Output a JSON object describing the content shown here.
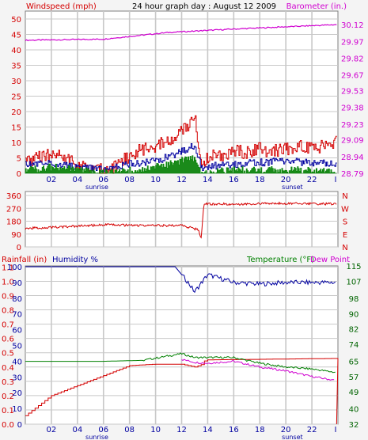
{
  "colors": {
    "red": "#d40000",
    "magenta": "#d000d0",
    "blue": "#0000a0",
    "green": "#008000",
    "darkgreen": "#006400",
    "grid": "#c8c8c8",
    "frame": "#808080"
  },
  "header": {
    "left": "Windspeed (mph)",
    "center": "24 hour graph day : August 12 2009",
    "right": "Barometer (in.)"
  },
  "x_ticks": [
    "02",
    "04",
    "06",
    "08",
    "10",
    "12",
    "14",
    "16",
    "18",
    "20",
    "22"
  ],
  "x_end_label": "I",
  "sunrise_label": "sunrise",
  "sunset_label": "sunset",
  "chart_data": [
    {
      "type": "bar",
      "title": "24 hour graph day : August 12 2009",
      "panel": "wind",
      "x_range": [
        0,
        24
      ],
      "ylim": [
        0,
        50
      ],
      "y_ticks": [
        "0",
        "5",
        "10",
        "15",
        "20",
        "25",
        "30",
        "35",
        "40",
        "45",
        "50"
      ],
      "ylabel": "Windspeed (mph)",
      "y2label": "Barometer (in.)",
      "y2lim": [
        28.79,
        30.17
      ],
      "y2_ticks": [
        "28.79",
        "28.94",
        "29.09",
        "29.23",
        "29.38",
        "29.53",
        "29.67",
        "29.82",
        "29.97",
        "30.12"
      ],
      "series": [
        {
          "name": "Barometer (in.)",
          "axis": "right",
          "hours": [
            0,
            6,
            11,
            16,
            20,
            24
          ],
          "values": [
            29.98,
            29.99,
            30.05,
            30.08,
            30.1,
            30.12
          ]
        },
        {
          "name": "Windspeed (mph)",
          "style": "gust",
          "hours": [
            0,
            1,
            2,
            3,
            4,
            5,
            6,
            7,
            8,
            9,
            10,
            11,
            11.5,
            12,
            12.5,
            13,
            13.5,
            14,
            15,
            16,
            17,
            18,
            19,
            20,
            21,
            22,
            23,
            23.8
          ],
          "values": [
            4,
            5,
            6,
            5,
            3,
            1,
            1,
            2,
            6,
            8,
            9,
            10,
            11,
            14,
            16,
            18,
            3,
            5,
            6,
            7,
            7,
            8,
            7,
            8,
            9,
            8,
            9,
            10
          ]
        },
        {
          "name": "Windspeed (mph)",
          "style": "average",
          "hours": [
            0,
            2,
            4,
            6,
            8,
            10,
            12,
            13,
            13.5,
            16,
            20,
            23.8
          ],
          "values": [
            3,
            3,
            2,
            1,
            3,
            4,
            7,
            9,
            2,
            3,
            4,
            3
          ]
        },
        {
          "name": "Windspeed (mph)",
          "style": "sustained",
          "hours": [
            0,
            2,
            4,
            6,
            8,
            10,
            12,
            13,
            13.5,
            16,
            20,
            23.8
          ],
          "values": [
            1,
            2,
            1,
            0,
            1,
            2,
            4,
            5,
            0,
            1,
            1,
            1
          ]
        }
      ]
    },
    {
      "type": "line",
      "panel": "direction",
      "x_range": [
        0,
        24
      ],
      "ylim": [
        0,
        360
      ],
      "y_ticks": [
        "360",
        "270",
        "180",
        "90",
        "0"
      ],
      "direction_labels": [
        "N",
        "W",
        "S",
        "E",
        "N"
      ],
      "series": [
        {
          "name": "Wind direction",
          "hours": [
            0,
            3,
            6,
            9,
            12,
            13.3,
            13.5,
            13.7,
            16,
            20,
            23.8
          ],
          "values": [
            130,
            140,
            155,
            150,
            150,
            120,
            60,
            300,
            300,
            305,
            300
          ]
        }
      ]
    },
    {
      "type": "line",
      "panel": "temperature",
      "x_range": [
        0,
        24
      ],
      "left_axis_a": {
        "label": "Rainfall (in)",
        "ticks": [
          "0.0",
          "0.1",
          "0.2",
          "0.3",
          "0.4",
          "0.5",
          "0.6",
          "0.7",
          "0.8",
          "0.9",
          "1.0",
          "1.1"
        ]
      },
      "left_axis_b": {
        "label": "Humidity %",
        "ticks": [
          "0",
          "10",
          "20",
          "30",
          "40",
          "50",
          "60",
          "70",
          "80",
          "90",
          "100"
        ]
      },
      "right_axis": {
        "label": "Temperature (°F)",
        "ticks": [
          "32",
          "40",
          "49",
          "57",
          "65",
          "74",
          "82",
          "90",
          "98",
          "107",
          "115"
        ]
      },
      "right_label2": "Dew Point",
      "series": [
        {
          "name": "Rainfall (in)",
          "hours": [
            0,
            2,
            4,
            6,
            8,
            10,
            12,
            13,
            13.6,
            13.8,
            24
          ],
          "values": [
            0.06,
            0.2,
            0.27,
            0.34,
            0.41,
            0.42,
            0.42,
            0.4,
            0.42,
            0.45,
            0.46
          ]
        },
        {
          "name": "Humidity %",
          "hours": [
            0,
            6,
            11.5,
            12.5,
            13,
            14,
            16,
            18,
            20,
            22,
            24
          ],
          "values": [
            100,
            100,
            100,
            90,
            84,
            95,
            90,
            89,
            90,
            90,
            90
          ]
        },
        {
          "name": "Temperature (°F)",
          "hours": [
            0,
            3,
            6,
            9,
            12,
            13,
            16,
            18,
            20,
            22,
            24
          ],
          "values": [
            65,
            65,
            65,
            65.5,
            69,
            67,
            67,
            64,
            62,
            61,
            59
          ]
        },
        {
          "name": "Dew Point",
          "hours": [
            12,
            13,
            14,
            16,
            18,
            20,
            22,
            23.8
          ],
          "values": [
            66,
            64.5,
            64,
            65,
            62,
            60,
            57,
            55
          ]
        }
      ]
    }
  ]
}
